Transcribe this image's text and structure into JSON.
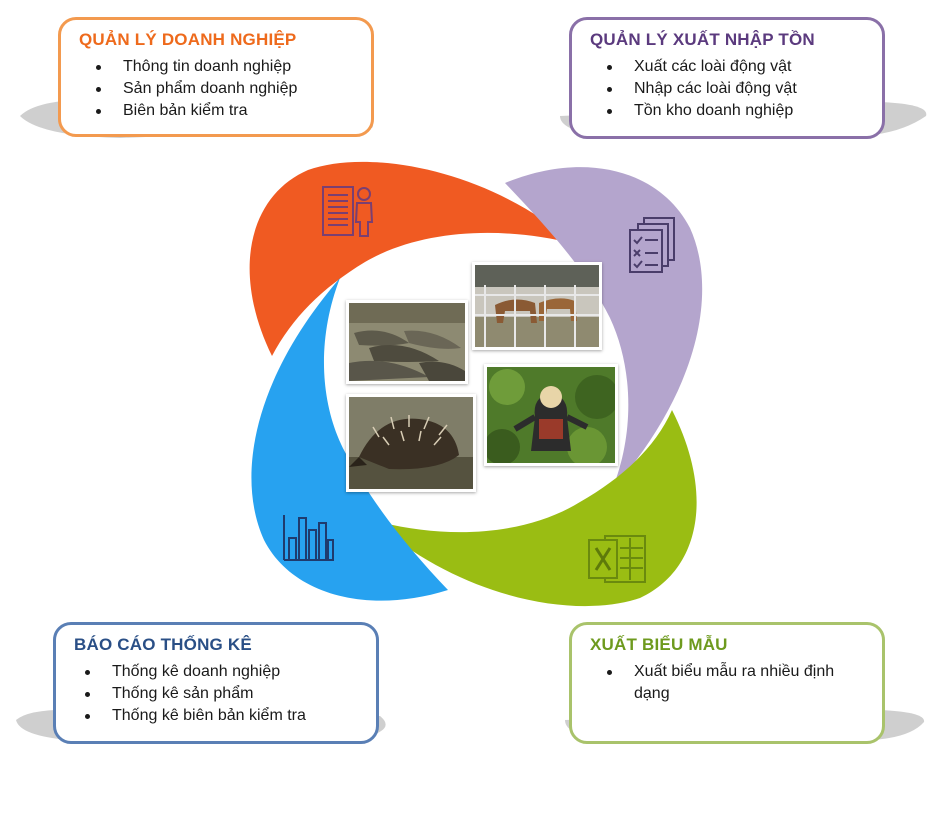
{
  "modules": {
    "business": {
      "title": "QUẢN LÝ DOANH NGHIỆP",
      "items": [
        "Thông tin doanh nghiệp",
        "Sản phẩm doanh nghiệp",
        "Biên bản kiểm tra"
      ],
      "color": "#f05a22"
    },
    "inventory": {
      "title": "QUẢN LÝ XUẤT NHẬP TỒN",
      "items": [
        "Xuất các loài động vật",
        "Nhập các loài động vật",
        "Tồn kho doanh nghiệp"
      ],
      "color": "#b4a5cd"
    },
    "reports": {
      "title": "BÁO CÁO THỐNG KÊ",
      "items": [
        "Thống kê doanh nghiệp",
        "Thống kê sản phẩm",
        "Thống kê biên bản kiểm tra"
      ],
      "color": "#27a2f0"
    },
    "export": {
      "title": "XUẤT BIỂU MẪU",
      "items": [
        "Xuất biểu mẫu ra nhiều định dạng"
      ],
      "color": "#9abd13"
    }
  },
  "icons": {
    "business": "document-person-icon",
    "inventory": "checklist-icon",
    "reports": "bar-chart-icon",
    "export": "excel-icon"
  },
  "photos": [
    "crocodiles",
    "deer-enclosure",
    "echidna",
    "monkey"
  ]
}
